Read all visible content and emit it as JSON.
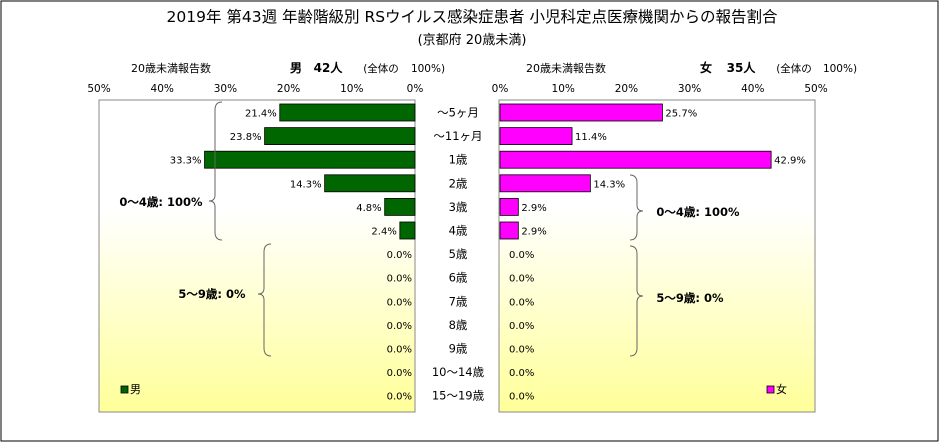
{
  "header": {
    "title": "2019年 第43週 年齢階級別 RSウイルス感染症患者 小児科定点医療機関からの報告割合",
    "subtitle": "(京都府 20歳未満)"
  },
  "left_panel": {
    "caption": "20歳未満報告数",
    "sex": "男",
    "count": "42人",
    "total_label": "(全体の",
    "total_pct": "100%)",
    "legend": "男",
    "bracket_0_4": "0～4歳: 100%",
    "bracket_5_9": "5～9歳: 0%"
  },
  "right_panel": {
    "caption": "20歳未満報告数",
    "sex": "女",
    "count": "35人",
    "total_label": "(全体の",
    "total_pct": "100%)",
    "legend": "女",
    "bracket_0_4": "0～4歳: 100%",
    "bracket_5_9": "5～9歳: 0%"
  },
  "colors": {
    "male": "#006600",
    "female": "#ff00ff",
    "grad_top": "#ffffff",
    "grad_bottom": "#ffff99"
  },
  "chart_data": {
    "type": "bar",
    "orientation": "horizontal-butterfly",
    "categories": [
      "～5ヶ月",
      "～11ヶ月",
      "1歳",
      "2歳",
      "3歳",
      "4歳",
      "5歳",
      "6歳",
      "7歳",
      "8歳",
      "9歳",
      "10～14歳",
      "15～19歳"
    ],
    "xlim": [
      0,
      50
    ],
    "ticks": [
      50,
      40,
      30,
      20,
      10,
      0
    ],
    "tick_labels_left": [
      "50%",
      "40%",
      "30%",
      "20%",
      "10%",
      "0%"
    ],
    "tick_labels_right": [
      "0%",
      "10%",
      "20%",
      "30%",
      "40%",
      "50%"
    ],
    "series": [
      {
        "name": "男",
        "side": "left",
        "values": [
          21.4,
          23.8,
          33.3,
          14.3,
          4.8,
          2.4,
          0,
          0,
          0,
          0,
          0,
          0,
          0
        ],
        "labels": [
          "21.4%",
          "23.8%",
          "33.3%",
          "14.3%",
          "4.8%",
          "2.4%",
          "0.0%",
          "0.0%",
          "0.0%",
          "0.0%",
          "0.0%",
          "0.0%",
          "0.0%"
        ]
      },
      {
        "name": "女",
        "side": "right",
        "values": [
          25.7,
          11.4,
          42.9,
          14.3,
          2.9,
          2.9,
          0,
          0,
          0,
          0,
          0,
          0,
          0
        ],
        "labels": [
          "25.7%",
          "11.4%",
          "42.9%",
          "14.3%",
          "2.9%",
          "2.9%",
          "0.0%",
          "0.0%",
          "0.0%",
          "0.0%",
          "0.0%",
          "0.0%",
          "0.0%"
        ]
      }
    ]
  }
}
